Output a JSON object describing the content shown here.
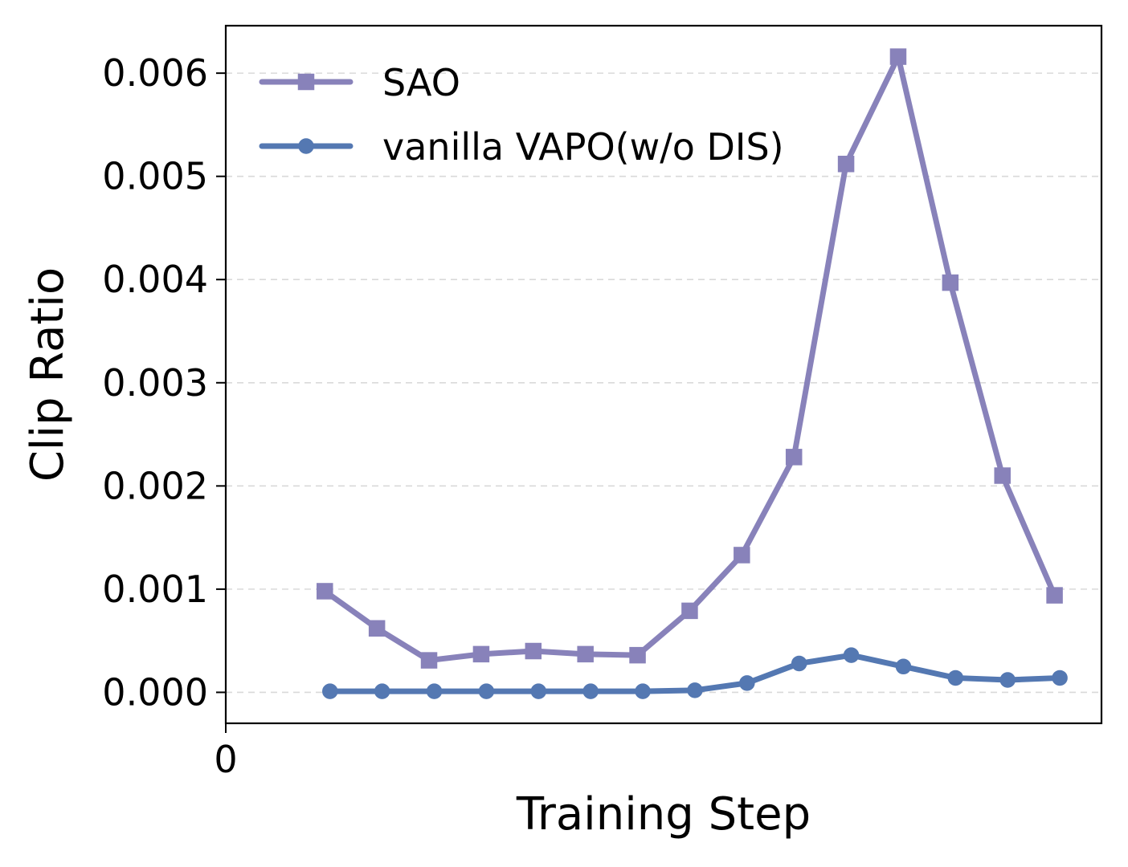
{
  "chart_data": {
    "type": "line",
    "xlabel": "Training Step",
    "ylabel": "Clip Ratio",
    "x_ticks": [
      "0"
    ],
    "y_ticks": [
      "0.000",
      "0.001",
      "0.002",
      "0.003",
      "0.004",
      "0.005",
      "0.006"
    ],
    "xlim": [
      0,
      16.8
    ],
    "ylim": [
      -0.0003,
      0.00646
    ],
    "grid": "horizontal dashed",
    "legend_position": "top-left",
    "series": [
      {
        "name": "SAO",
        "color": "#8882ba",
        "marker": "square",
        "x": [
          1.9,
          2.9,
          3.9,
          4.9,
          5.9,
          6.9,
          7.9,
          8.9,
          9.9,
          10.9,
          11.9,
          12.9,
          13.9,
          14.9,
          15.9
        ],
        "values": [
          0.00098,
          0.00062,
          0.00031,
          0.00037,
          0.0004,
          0.00037,
          0.00036,
          0.00079,
          0.00133,
          0.00228,
          0.00512,
          0.00616,
          0.00397,
          0.0021,
          0.00094
        ]
      },
      {
        "name": "vanilla VAPO(w/o DIS)",
        "color": "#5478b2",
        "marker": "circle",
        "x": [
          2.0,
          3.0,
          4.0,
          5.0,
          6.0,
          7.0,
          8.0,
          9.0,
          10.0,
          11.0,
          12.0,
          13.0,
          14.0,
          15.0,
          16.0
        ],
        "values": [
          1e-05,
          1e-05,
          1e-05,
          1e-05,
          1e-05,
          1e-05,
          1e-05,
          2e-05,
          9e-05,
          0.00028,
          0.00036,
          0.00025,
          0.00014,
          0.00012,
          0.00014
        ]
      }
    ]
  }
}
